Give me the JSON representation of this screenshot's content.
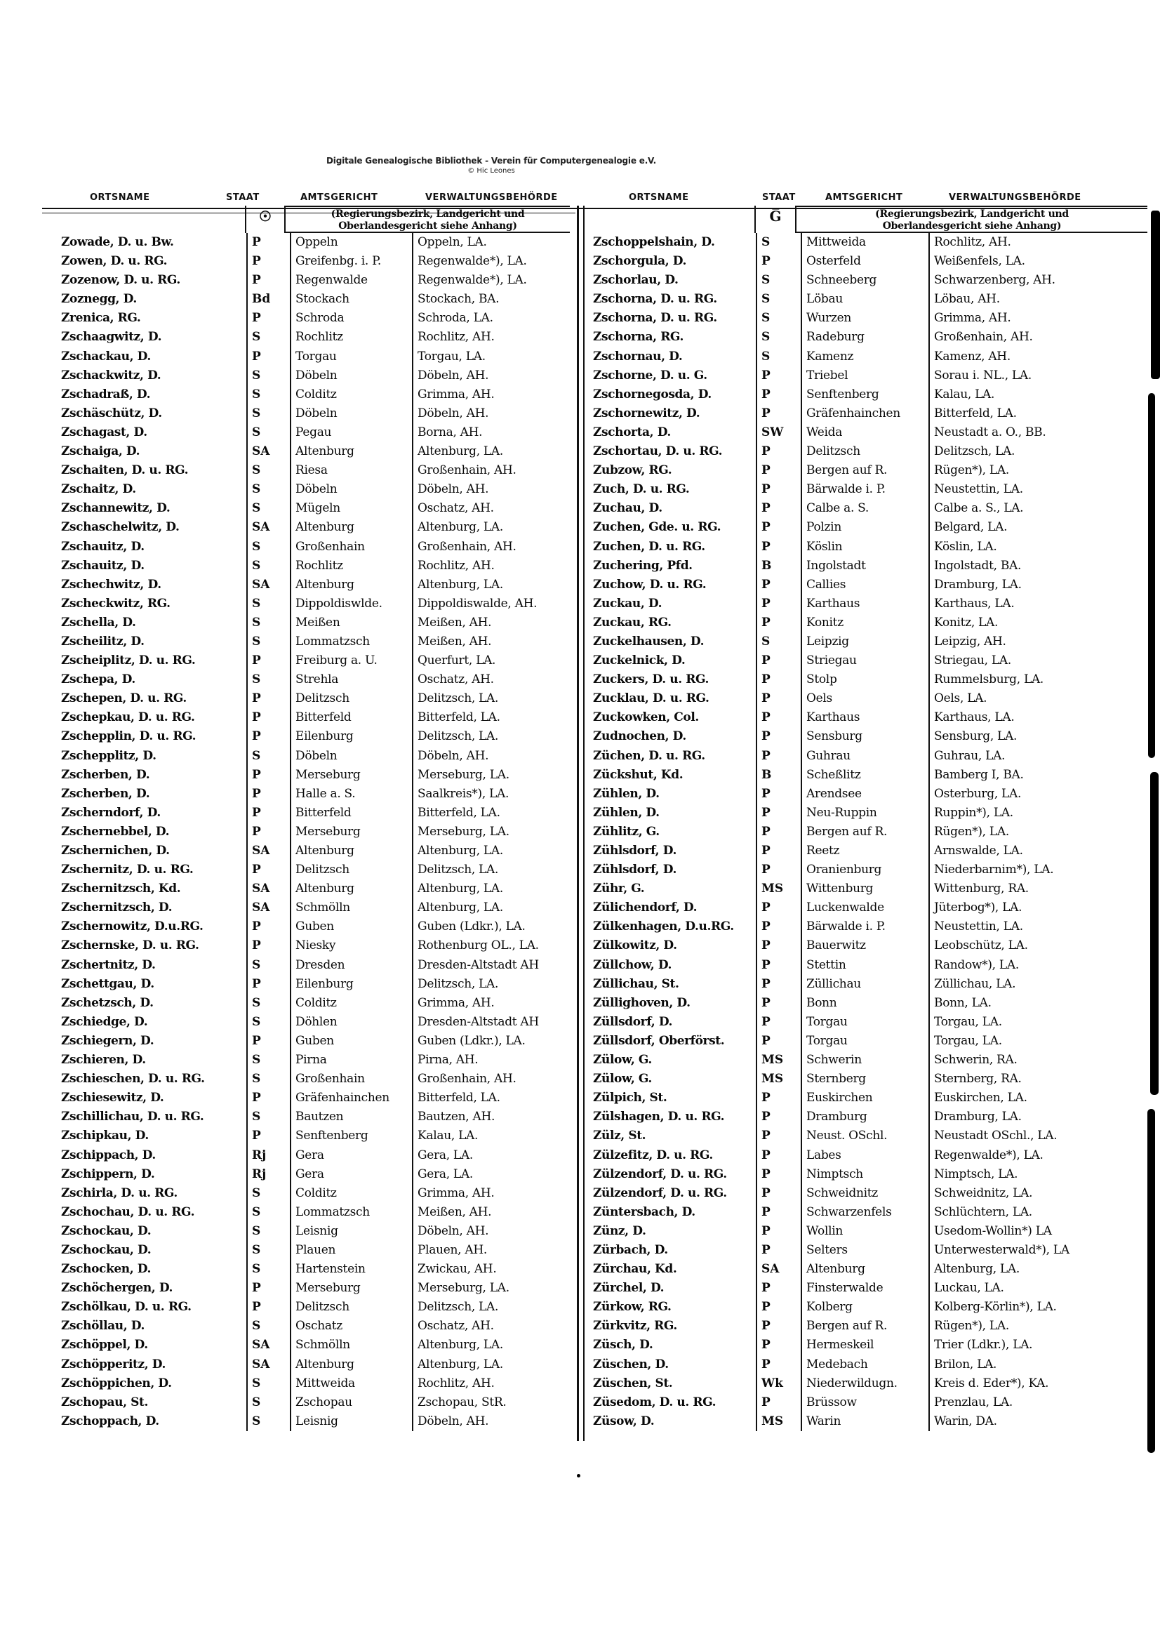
{
  "watermark": {
    "line1": "Digitale Genealogische Bibliothek - Verein für Computergenealogie e.V.",
    "line2": "© Hic Leones"
  },
  "columns": [
    "ORTSNAME",
    "STAAT",
    "AMTSGERICHT",
    "VERWALTUNGSBEHÖRDE"
  ],
  "note": {
    "line1": "(Regierungsbezirk, Landgericht und",
    "line2": "Oberlandesgericht siehe Anhang)"
  },
  "left_group": {
    "staat_symbol": "☉",
    "rows": [
      [
        "Zowade, D. u. Bw.",
        "P",
        "Oppeln",
        "Oppeln, LA."
      ],
      [
        "Zowen, D. u. RG.",
        "P",
        "Greifenbg. i. P.",
        "Regenwalde*), LA."
      ],
      [
        "Zozenow, D. u. RG.",
        "P",
        "Regenwalde",
        "Regenwalde*), LA."
      ],
      [
        "Zoznegg, D.",
        "Bd",
        "Stockach",
        "Stockach, BA."
      ],
      [
        "Zrenica, RG.",
        "P",
        "Schroda",
        "Schroda, LA."
      ],
      [
        "Zschaagwitz, D.",
        "S",
        "Rochlitz",
        "Rochlitz, AH."
      ],
      [
        "Zschackau, D.",
        "P",
        "Torgau",
        "Torgau, LA."
      ],
      [
        "Zschackwitz, D.",
        "S",
        "Döbeln",
        "Döbeln, AH."
      ],
      [
        "Zschadraß, D.",
        "S",
        "Colditz",
        "Grimma, AH."
      ],
      [
        "Zschäschütz, D.",
        "S",
        "Döbeln",
        "Döbeln, AH."
      ],
      [
        "Zschagast, D.",
        "S",
        "Pegau",
        "Borna, AH."
      ],
      [
        "Zschaiga, D.",
        "SA",
        "Altenburg",
        "Altenburg, LA."
      ],
      [
        "Zschaiten, D. u. RG.",
        "S",
        "Riesa",
        "Großenhain, AH."
      ],
      [
        "Zschaitz, D.",
        "S",
        "Döbeln",
        "Döbeln, AH."
      ],
      [
        "Zschannewitz, D.",
        "S",
        "Mügeln",
        "Oschatz, AH."
      ],
      [
        "Zschaschelwitz, D.",
        "SA",
        "Altenburg",
        "Altenburg, LA."
      ],
      [
        "Zschauitz, D.",
        "S",
        "Großenhain",
        "Großenhain, AH."
      ],
      [
        "Zschauitz, D.",
        "S",
        "Rochlitz",
        "Rochlitz, AH."
      ],
      [
        "Zschechwitz, D.",
        "SA",
        "Altenburg",
        "Altenburg, LA."
      ],
      [
        "Zscheckwitz, RG.",
        "S",
        "Dippoldiswlde.",
        "Dippoldiswalde, AH."
      ],
      [
        "Zschella, D.",
        "S",
        "Meißen",
        "Meißen, AH."
      ],
      [
        "Zscheilitz, D.",
        "S",
        "Lommatzsch",
        "Meißen, AH."
      ],
      [
        "Zscheiplitz, D. u. RG.",
        "P",
        "Freiburg a. U.",
        "Querfurt, LA."
      ],
      [
        "Zschepa, D.",
        "S",
        "Strehla",
        "Oschatz, AH."
      ],
      [
        "Zschepen, D. u. RG.",
        "P",
        "Delitzsch",
        "Delitzsch, LA."
      ],
      [
        "Zschepkau, D. u. RG.",
        "P",
        "Bitterfeld",
        "Bitterfeld, LA."
      ],
      [
        "Zschepplin, D. u. RG.",
        "P",
        "Eilenburg",
        "Delitzsch, LA."
      ],
      [
        "Zschepplitz, D.",
        "S",
        "Döbeln",
        "Döbeln, AH."
      ],
      [
        "Zscherben, D.",
        "P",
        "Merseburg",
        "Merseburg, LA."
      ],
      [
        "Zscherben, D.",
        "P",
        "Halle a. S.",
        "Saalkreis*), LA."
      ],
      [
        "Zscherndorf, D.",
        "P",
        "Bitterfeld",
        "Bitterfeld, LA."
      ],
      [
        "Zschernebbel, D.",
        "P",
        "Merseburg",
        "Merseburg, LA."
      ],
      [
        "Zschernichen, D.",
        "SA",
        "Altenburg",
        "Altenburg, LA."
      ],
      [
        "Zschernitz, D. u. RG.",
        "P",
        "Delitzsch",
        "Delitzsch, LA."
      ],
      [
        "Zschernitzsch, Kd.",
        "SA",
        "Altenburg",
        "Altenburg, LA."
      ],
      [
        "Zschernitzsch, D.",
        "SA",
        "Schmölln",
        "Altenburg, LA."
      ],
      [
        "Zschernowitz, D.u.RG.",
        "P",
        "Guben",
        "Guben (Ldkr.), LA."
      ],
      [
        "Zschernske, D. u. RG.",
        "P",
        "Niesky",
        "Rothenburg OL., LA."
      ],
      [
        "Zschertnitz, D.",
        "S",
        "Dresden",
        "Dresden-Altstadt AH"
      ],
      [
        "Zschettgau, D.",
        "P",
        "Eilenburg",
        "Delitzsch, LA."
      ],
      [
        "Zschetzsch, D.",
        "S",
        "Colditz",
        "Grimma, AH."
      ],
      [
        "Zschiedge, D.",
        "S",
        "Döhlen",
        "Dresden-Altstadt AH"
      ],
      [
        "Zschiegern, D.",
        "P",
        "Guben",
        "Guben (Ldkr.), LA."
      ],
      [
        "Zschieren, D.",
        "S",
        "Pirna",
        "Pirna, AH."
      ],
      [
        "Zschieschen, D. u. RG.",
        "S",
        "Großenhain",
        "Großenhain, AH."
      ],
      [
        "Zschiesewitz, D.",
        "P",
        "Gräfenhainchen",
        "Bitterfeld, LA."
      ],
      [
        "Zschillichau, D. u. RG.",
        "S",
        "Bautzen",
        "Bautzen, AH."
      ],
      [
        "Zschipkau, D.",
        "P",
        "Senftenberg",
        "Kalau, LA."
      ],
      [
        "Zschippach, D.",
        "Rj",
        "Gera",
        "Gera, LA."
      ],
      [
        "Zschippern, D.",
        "Rj",
        "Gera",
        "Gera, LA."
      ],
      [
        "Zschirla, D. u. RG.",
        "S",
        "Colditz",
        "Grimma, AH."
      ],
      [
        "Zschochau, D. u. RG.",
        "S",
        "Lommatzsch",
        "Meißen, AH."
      ],
      [
        "Zschockau, D.",
        "S",
        "Leisnig",
        "Döbeln, AH."
      ],
      [
        "Zschockau, D.",
        "S",
        "Plauen",
        "Plauen, AH."
      ],
      [
        "Zschocken, D.",
        "S",
        "Hartenstein",
        "Zwickau, AH."
      ],
      [
        "Zschöchergen, D.",
        "P",
        "Merseburg",
        "Merseburg, LA."
      ],
      [
        "Zschölkau, D. u. RG.",
        "P",
        "Delitzsch",
        "Delitzsch, LA."
      ],
      [
        "Zschöllau, D.",
        "S",
        "Oschatz",
        "Oschatz, AH."
      ],
      [
        "Zschöppel, D.",
        "SA",
        "Schmölln",
        "Altenburg, LA."
      ],
      [
        "Zschöpperitz, D.",
        "SA",
        "Altenburg",
        "Altenburg, LA."
      ],
      [
        "Zschöppichen, D.",
        "S",
        "Mittweida",
        "Rochlitz, AH."
      ],
      [
        "Zschopau, St.",
        "S",
        "Zschopau",
        "Zschopau, StR."
      ],
      [
        "Zschoppach, D.",
        "S",
        "Leisnig",
        "Döbeln, AH."
      ]
    ]
  },
  "right_group": {
    "staat_symbol": "G̅",
    "rows": [
      [
        "Zschoppelshain, D.",
        "S",
        "Mittweida",
        "Rochlitz, AH."
      ],
      [
        "Zschorgula, D.",
        "P",
        "Osterfeld",
        "Weißenfels, LA."
      ],
      [
        "Zschorlau, D.",
        "S",
        "Schneeberg",
        "Schwarzenberg, AH."
      ],
      [
        "Zschorna, D. u. RG.",
        "S",
        "Löbau",
        "Löbau, AH."
      ],
      [
        "Zschorna, D. u. RG.",
        "S",
        "Wurzen",
        "Grimma, AH."
      ],
      [
        "Zschorna, RG.",
        "S",
        "Radeburg",
        "Großenhain, AH."
      ],
      [
        "Zschornau, D.",
        "S",
        "Kamenz",
        "Kamenz, AH."
      ],
      [
        "Zschorne, D. u. G.",
        "P",
        "Triebel",
        "Sorau i. NL., LA."
      ],
      [
        "Zschornegosda, D.",
        "P",
        "Senftenberg",
        "Kalau, LA."
      ],
      [
        "Zschornewitz, D.",
        "P",
        "Gräfenhainchen",
        "Bitterfeld, LA."
      ],
      [
        "Zschorta, D.",
        "SW",
        "Weida",
        "Neustadt a. O., BB."
      ],
      [
        "Zschortau, D. u. RG.",
        "P",
        "Delitzsch",
        "Delitzsch, LA."
      ],
      [
        "Zubzow, RG.",
        "P",
        "Bergen auf R.",
        "Rügen*), LA."
      ],
      [
        "Zuch, D. u. RG.",
        "P",
        "Bärwalde i. P.",
        "Neustettin, LA."
      ],
      [
        "Zuchau, D.",
        "P",
        "Calbe a. S.",
        "Calbe a. S., LA."
      ],
      [
        "Zuchen, Gde. u. RG.",
        "P",
        "Polzin",
        "Belgard, LA."
      ],
      [
        "Zuchen, D. u. RG.",
        "P",
        "Köslin",
        "Köslin, LA."
      ],
      [
        "Zuchering, Pfd.",
        "B",
        "Ingolstadt",
        "Ingolstadt, BA."
      ],
      [
        "Zuchow, D. u. RG.",
        "P",
        "Callies",
        "Dramburg, LA."
      ],
      [
        "Zuckau, D.",
        "P",
        "Karthaus",
        "Karthaus, LA."
      ],
      [
        "Zuckau, RG.",
        "P",
        "Konitz",
        "Konitz, LA."
      ],
      [
        "Zuckelhausen, D.",
        "S",
        "Leipzig",
        "Leipzig, AH."
      ],
      [
        "Zuckelnick, D.",
        "P",
        "Striegau",
        "Striegau, LA."
      ],
      [
        "Zuckers, D. u. RG.",
        "P",
        "Stolp",
        "Rummelsburg, LA."
      ],
      [
        "Zucklau, D. u. RG.",
        "P",
        "Oels",
        "Oels, LA."
      ],
      [
        "Zuckowken, Col.",
        "P",
        "Karthaus",
        "Karthaus, LA."
      ],
      [
        "Zudnochen, D.",
        "P",
        "Sensburg",
        "Sensburg, LA."
      ],
      [
        "Züchen, D. u. RG.",
        "P",
        "Guhrau",
        "Guhrau, LA."
      ],
      [
        "Zückshut, Kd.",
        "B",
        "Scheßlitz",
        "Bamberg I, BA."
      ],
      [
        "Zühlen, D.",
        "P",
        "Arendsee",
        "Osterburg, LA."
      ],
      [
        "Zühlen, D.",
        "P",
        "Neu-Ruppin",
        "Ruppin*), LA."
      ],
      [
        "Zühlitz, G.",
        "P",
        "Bergen auf R.",
        "Rügen*), LA."
      ],
      [
        "Zühlsdorf, D.",
        "P",
        "Reetz",
        "Arnswalde, LA."
      ],
      [
        "Zühlsdorf, D.",
        "P",
        "Oranienburg",
        "Niederbarnim*), LA."
      ],
      [
        "Zühr, G.",
        "MS",
        "Wittenburg",
        "Wittenburg, RA."
      ],
      [
        "Zülichendorf, D.",
        "P",
        "Luckenwalde",
        "Jüterbog*), LA."
      ],
      [
        "Zülkenhagen, D.u.RG.",
        "P",
        "Bärwalde i. P.",
        "Neustettin, LA."
      ],
      [
        "Zülkowitz, D.",
        "P",
        "Bauerwitz",
        "Leobschütz, LA."
      ],
      [
        "Züllchow, D.",
        "P",
        "Stettin",
        "Randow*), LA."
      ],
      [
        "Züllichau, St.",
        "P",
        "Züllichau",
        "Züllichau, LA."
      ],
      [
        "Züllighoven, D.",
        "P",
        "Bonn",
        "Bonn, LA."
      ],
      [
        "Züllsdorf, D.",
        "P",
        "Torgau",
        "Torgau, LA."
      ],
      [
        "Züllsdorf, Oberförst.",
        "P",
        "Torgau",
        "Torgau, LA."
      ],
      [
        "Zülow, G.",
        "MS",
        "Schwerin",
        "Schwerin, RA."
      ],
      [
        "Zülow, G.",
        "MS",
        "Sternberg",
        "Sternberg, RA."
      ],
      [
        "Zülpich, St.",
        "P",
        "Euskirchen",
        "Euskirchen, LA."
      ],
      [
        "Zülshagen, D. u. RG.",
        "P",
        "Dramburg",
        "Dramburg, LA."
      ],
      [
        "Zülz, St.",
        "P",
        "Neust. OSchl.",
        "Neustadt OSchl., LA."
      ],
      [
        "Zülzefitz, D. u. RG.",
        "P",
        "Labes",
        "Regenwalde*), LA."
      ],
      [
        "Zülzendorf, D. u. RG.",
        "P",
        "Nimptsch",
        "Nimptsch, LA."
      ],
      [
        "Zülzendorf, D. u. RG.",
        "P",
        "Schweidnitz",
        "Schweidnitz, LA."
      ],
      [
        "Züntersbach, D.",
        "P",
        "Schwarzenfels",
        "Schlüchtern, LA."
      ],
      [
        "Zünz, D.",
        "P",
        "Wollin",
        "Usedom-Wollin*) LA"
      ],
      [
        "Zürbach, D.",
        "P",
        "Selters",
        "Unterwesterwald*), LA"
      ],
      [
        "Zürchau, Kd.",
        "SA",
        "Altenburg",
        "Altenburg, LA."
      ],
      [
        "Zürchel, D.",
        "P",
        "Finsterwalde",
        "Luckau, LA."
      ],
      [
        "Zürkow, RG.",
        "P",
        "Kolberg",
        "Kolberg-Körlin*), LA."
      ],
      [
        "Zürkvitz, RG.",
        "P",
        "Bergen auf R.",
        "Rügen*), LA."
      ],
      [
        "Züsch, D.",
        "P",
        "Hermeskeil",
        "Trier (Ldkr.), LA."
      ],
      [
        "Züschen, D.",
        "P",
        "Medebach",
        "Brilon, LA."
      ],
      [
        "Züschen, St.",
        "Wk",
        "Niederwildugn.",
        "Kreis d. Eder*), KA."
      ],
      [
        "Züsedom, D. u. RG.",
        "P",
        "Brüssow",
        "Prenzlau, LA."
      ],
      [
        "Züsow, D.",
        "MS",
        "Warin",
        "Warin, DA."
      ]
    ]
  }
}
